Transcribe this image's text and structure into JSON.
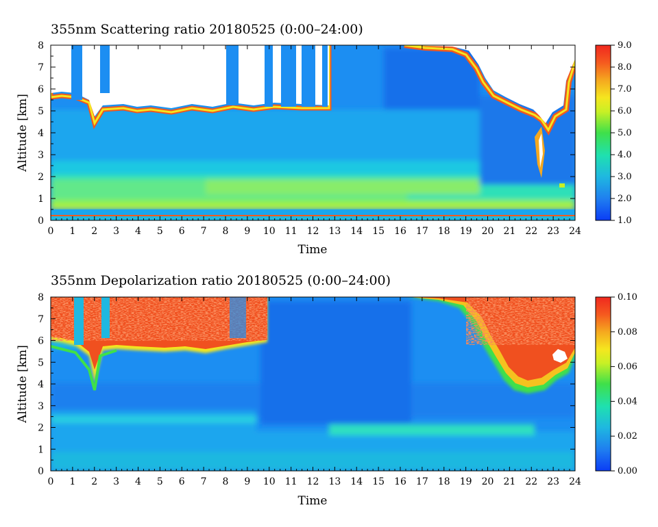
{
  "chart_data": [
    {
      "type": "heatmap",
      "title": "355nm Scattering ratio  20180525 (0:00–24:00)",
      "xlabel": "Time",
      "ylabel": "Altitude [km]",
      "xlim": [
        0,
        24
      ],
      "ylim": [
        0,
        8
      ],
      "x_ticks": [
        "0",
        "1",
        "2",
        "3",
        "4",
        "5",
        "6",
        "7",
        "8",
        "9",
        "10",
        "11",
        "12",
        "13",
        "14",
        "15",
        "16",
        "17",
        "18",
        "19",
        "20",
        "21",
        "22",
        "23",
        "24"
      ],
      "y_ticks": [
        "0",
        "1",
        "2",
        "3",
        "4",
        "5",
        "6",
        "7",
        "8"
      ],
      "colorbar": {
        "range": [
          1.0,
          9.0
        ],
        "ticks": [
          "1.0",
          "2.0",
          "3.0",
          "4.0",
          "5.0",
          "6.0",
          "7.0",
          "8.0",
          "9.0"
        ],
        "colormap": "rainbow"
      },
      "no_data_color": "#ffffff"
    },
    {
      "type": "heatmap",
      "title": "355nm Depolarization ratio  20180525 (0:00–24:00)",
      "xlabel": "Time",
      "ylabel": "Altitude [km]",
      "xlim": [
        0,
        24
      ],
      "ylim": [
        0,
        8
      ],
      "x_ticks": [
        "0",
        "1",
        "2",
        "3",
        "4",
        "5",
        "6",
        "7",
        "8",
        "9",
        "10",
        "11",
        "12",
        "13",
        "14",
        "15",
        "16",
        "17",
        "18",
        "19",
        "20",
        "21",
        "22",
        "23",
        "24"
      ],
      "y_ticks": [
        "0",
        "1",
        "2",
        "3",
        "4",
        "5",
        "6",
        "7",
        "8"
      ],
      "colorbar": {
        "range": [
          0.0,
          0.1
        ],
        "ticks": [
          "0.00",
          "0.02",
          "0.04",
          "0.06",
          "0.08",
          "0.10"
        ],
        "colormap": "rainbow"
      },
      "no_data_color": "#ffffff"
    }
  ]
}
